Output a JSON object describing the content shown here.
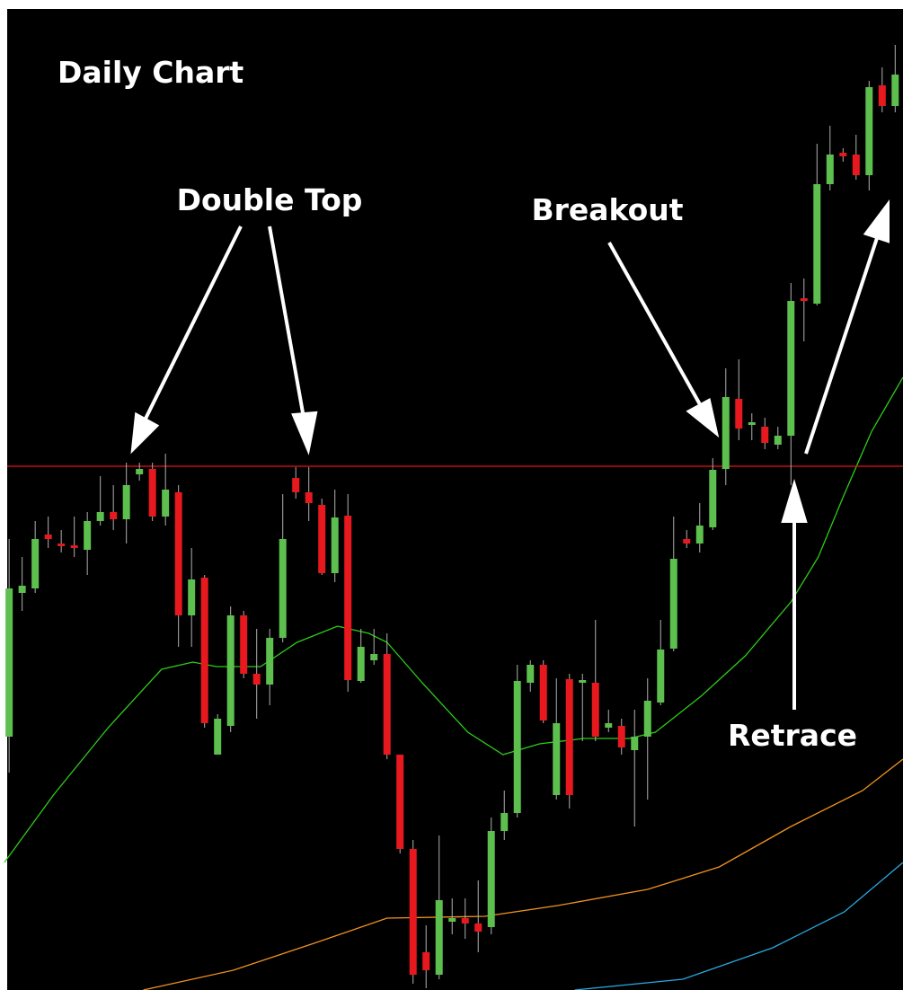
{
  "chart_data": {
    "type": "candlestick",
    "title": "Daily Chart",
    "annotations": [
      "Double Top",
      "Breakout",
      "Retrace"
    ],
    "open": [
      280,
      440,
      445,
      505,
      495,
      493,
      488,
      520,
      530,
      522,
      572,
      578,
      525,
      552,
      415,
      457,
      260,
      292,
      415,
      350,
      338,
      390,
      568,
      552,
      538,
      462,
      526,
      342,
      365,
      372,
      260,
      155,
      40,
      15,
      74,
      78,
      72,
      68,
      175,
      195,
      340,
      360,
      215,
      344,
      340,
      340,
      290,
      292,
      265,
      280,
      318,
      378,
      500,
      495,
      513,
      578,
      656,
      627,
      625,
      605,
      615,
      768,
      762,
      895,
      930,
      928,
      905,
      1005,
      982
    ],
    "high": [
      500,
      480,
      520,
      525,
      510,
      525,
      530,
      570,
      560,
      585,
      585,
      585,
      595,
      560,
      490,
      460,
      305,
      425,
      420,
      400,
      400,
      550,
      580,
      580,
      545,
      555,
      550,
      400,
      400,
      395,
      260,
      165,
      70,
      170,
      100,
      100,
      120,
      190,
      220,
      360,
      365,
      365,
      345,
      350,
      350,
      410,
      310,
      300,
      310,
      345,
      410,
      525,
      510,
      540,
      590,
      690,
      700,
      640,
      635,
      625,
      785,
      790,
      940,
      960,
      935,
      950,
      1010,
      1025,
      1050
    ],
    "low": [
      240,
      420,
      440,
      490,
      485,
      480,
      460,
      515,
      510,
      495,
      565,
      520,
      515,
      380,
      380,
      290,
      260,
      285,
      345,
      300,
      315,
      385,
      545,
      520,
      460,
      452,
      330,
      340,
      360,
      255,
      150,
      5,
      0,
      10,
      60,
      55,
      40,
      60,
      165,
      190,
      330,
      295,
      210,
      200,
      275,
      275,
      285,
      260,
      180,
      210,
      315,
      375,
      490,
      485,
      510,
      560,
      610,
      610,
      600,
      600,
      560,
      720,
      760,
      888,
      920,
      900,
      888,
      975,
      975
    ],
    "close": [
      445,
      448,
      500,
      500,
      492,
      490,
      520,
      530,
      522,
      560,
      578,
      525,
      555,
      415,
      455,
      295,
      300,
      415,
      350,
      338,
      390,
      500,
      552,
      540,
      462,
      524,
      343,
      380,
      372,
      260,
      155,
      15,
      20,
      98,
      78,
      72,
      63,
      175,
      195,
      342,
      360,
      298,
      295,
      215,
      343,
      280,
      295,
      268,
      280,
      320,
      377,
      478,
      495,
      515,
      577,
      658,
      623,
      630,
      607,
      615,
      765,
      765,
      895,
      928,
      926,
      905,
      1003,
      982,
      1017
    ],
    "up_color": "#5cbf4e",
    "down_color": "#e8191e",
    "wick_color": "#b0b0b0",
    "xlim": [
      -0.7,
      68.6
    ],
    "ylim": [
      -2,
      1100
    ],
    "lines": [
      {
        "color": "#2ecc1a",
        "x": [
          -0.36,
          3.4,
          7.6,
          11.7,
          14.1,
          15.9,
          19.3,
          22.1,
          25.2,
          27.6,
          29,
          31.7,
          35.2,
          37.9,
          40.7,
          44.1,
          47.6,
          49.6,
          53.1,
          56.5,
          60,
          62.1,
          64.1,
          66.2,
          68.6
        ],
        "values": [
          140,
          215,
          290,
          355,
          363,
          358,
          358,
          385,
          403,
          395,
          385,
          340,
          285,
          260,
          272,
          278,
          278,
          285,
          325,
          370,
          430,
          480,
          550,
          620,
          680
        ]
      },
      {
        "color": "#f0931e",
        "x": [
          10.3,
          17.2,
          23.4,
          29,
          36.5,
          42.1,
          49,
          54.5,
          60,
          65.5,
          68.6
        ],
        "values": [
          -2,
          20,
          50,
          78,
          80,
          92,
          110,
          135,
          180,
          220,
          255
        ]
      },
      {
        "color": "#2aa8e0",
        "x": [
          43.4,
          51.7,
          58.6,
          64.1,
          68.6
        ],
        "values": [
          -2,
          10,
          45,
          85,
          140
        ]
      }
    ],
    "hline": {
      "value": 581,
      "color": "#e3141b"
    }
  }
}
